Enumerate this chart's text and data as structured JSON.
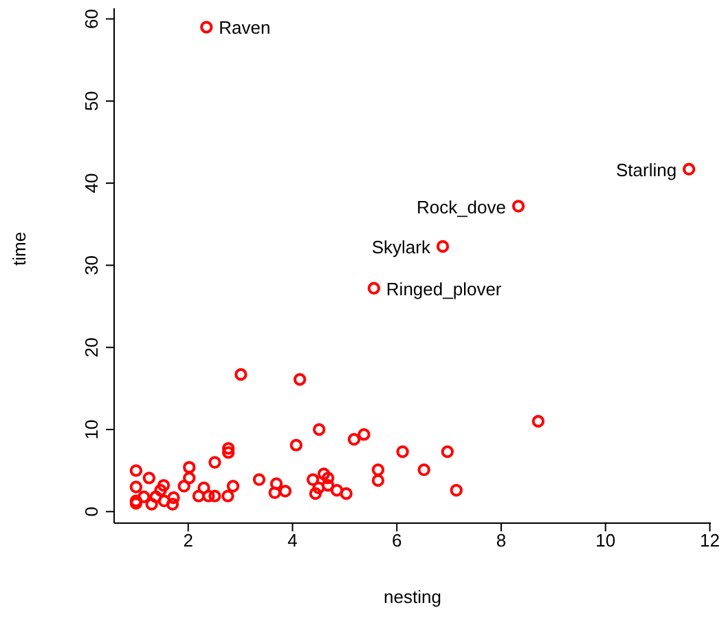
{
  "chart_data": {
    "type": "scatter",
    "xlabel": "nesting",
    "ylabel": "time",
    "marker": "circle",
    "grid": false,
    "legend": false,
    "xlim": [
      0.58,
      12.02
    ],
    "ylim": [
      -1.4,
      61.3
    ],
    "xticks": [
      2,
      4,
      6,
      8,
      10,
      12
    ],
    "yticks": [
      0,
      10,
      20,
      30,
      40,
      50,
      60
    ],
    "series": [
      {
        "color": "#ff0000",
        "x": [
          1.0,
          1.0,
          1.0,
          1.0,
          1.25,
          1.3,
          1.15,
          1.38,
          1.47,
          1.53,
          1.54,
          1.72,
          1.7,
          2.02,
          2.02,
          1.92,
          2.2,
          2.3,
          2.39,
          2.51,
          2.51,
          2.77,
          2.77,
          2.76,
          2.86,
          3.01,
          3.36,
          3.69,
          3.66,
          3.86,
          4.14,
          4.07,
          4.39,
          4.44,
          4.51,
          4.6,
          4.68,
          4.5,
          4.68,
          4.85,
          5.03,
          5.18,
          5.37,
          5.64,
          5.64,
          6.11,
          6.52,
          6.97,
          7.14,
          8.71,
          2.35,
          11.6,
          8.33,
          6.88,
          5.56
        ],
        "values": [
          5.0,
          3.0,
          1.3,
          1.0,
          4.1,
          0.9,
          1.8,
          1.8,
          2.6,
          3.2,
          1.3,
          1.7,
          0.9,
          5.4,
          4.1,
          3.1,
          1.9,
          2.9,
          1.9,
          1.9,
          6.0,
          7.7,
          7.2,
          1.9,
          3.1,
          16.7,
          3.9,
          3.4,
          2.3,
          2.5,
          16.1,
          8.1,
          3.9,
          2.2,
          10.0,
          4.6,
          4.1,
          2.9,
          3.2,
          2.6,
          2.2,
          8.8,
          9.4,
          5.1,
          3.8,
          7.3,
          5.1,
          7.3,
          2.6,
          11.0,
          59.0,
          41.7,
          37.2,
          32.3,
          27.2
        ]
      }
    ],
    "annotations": [
      {
        "text": "Raven",
        "x": 2.35,
        "y": 59.0
      },
      {
        "text": "Starling",
        "x": 11.6,
        "y": 41.7
      },
      {
        "text": "Rock_dove",
        "x": 8.33,
        "y": 37.2
      },
      {
        "text": "Skylark",
        "x": 6.88,
        "y": 32.3
      },
      {
        "text": "Ringed_plover",
        "x": 5.56,
        "y": 27.2
      }
    ]
  }
}
